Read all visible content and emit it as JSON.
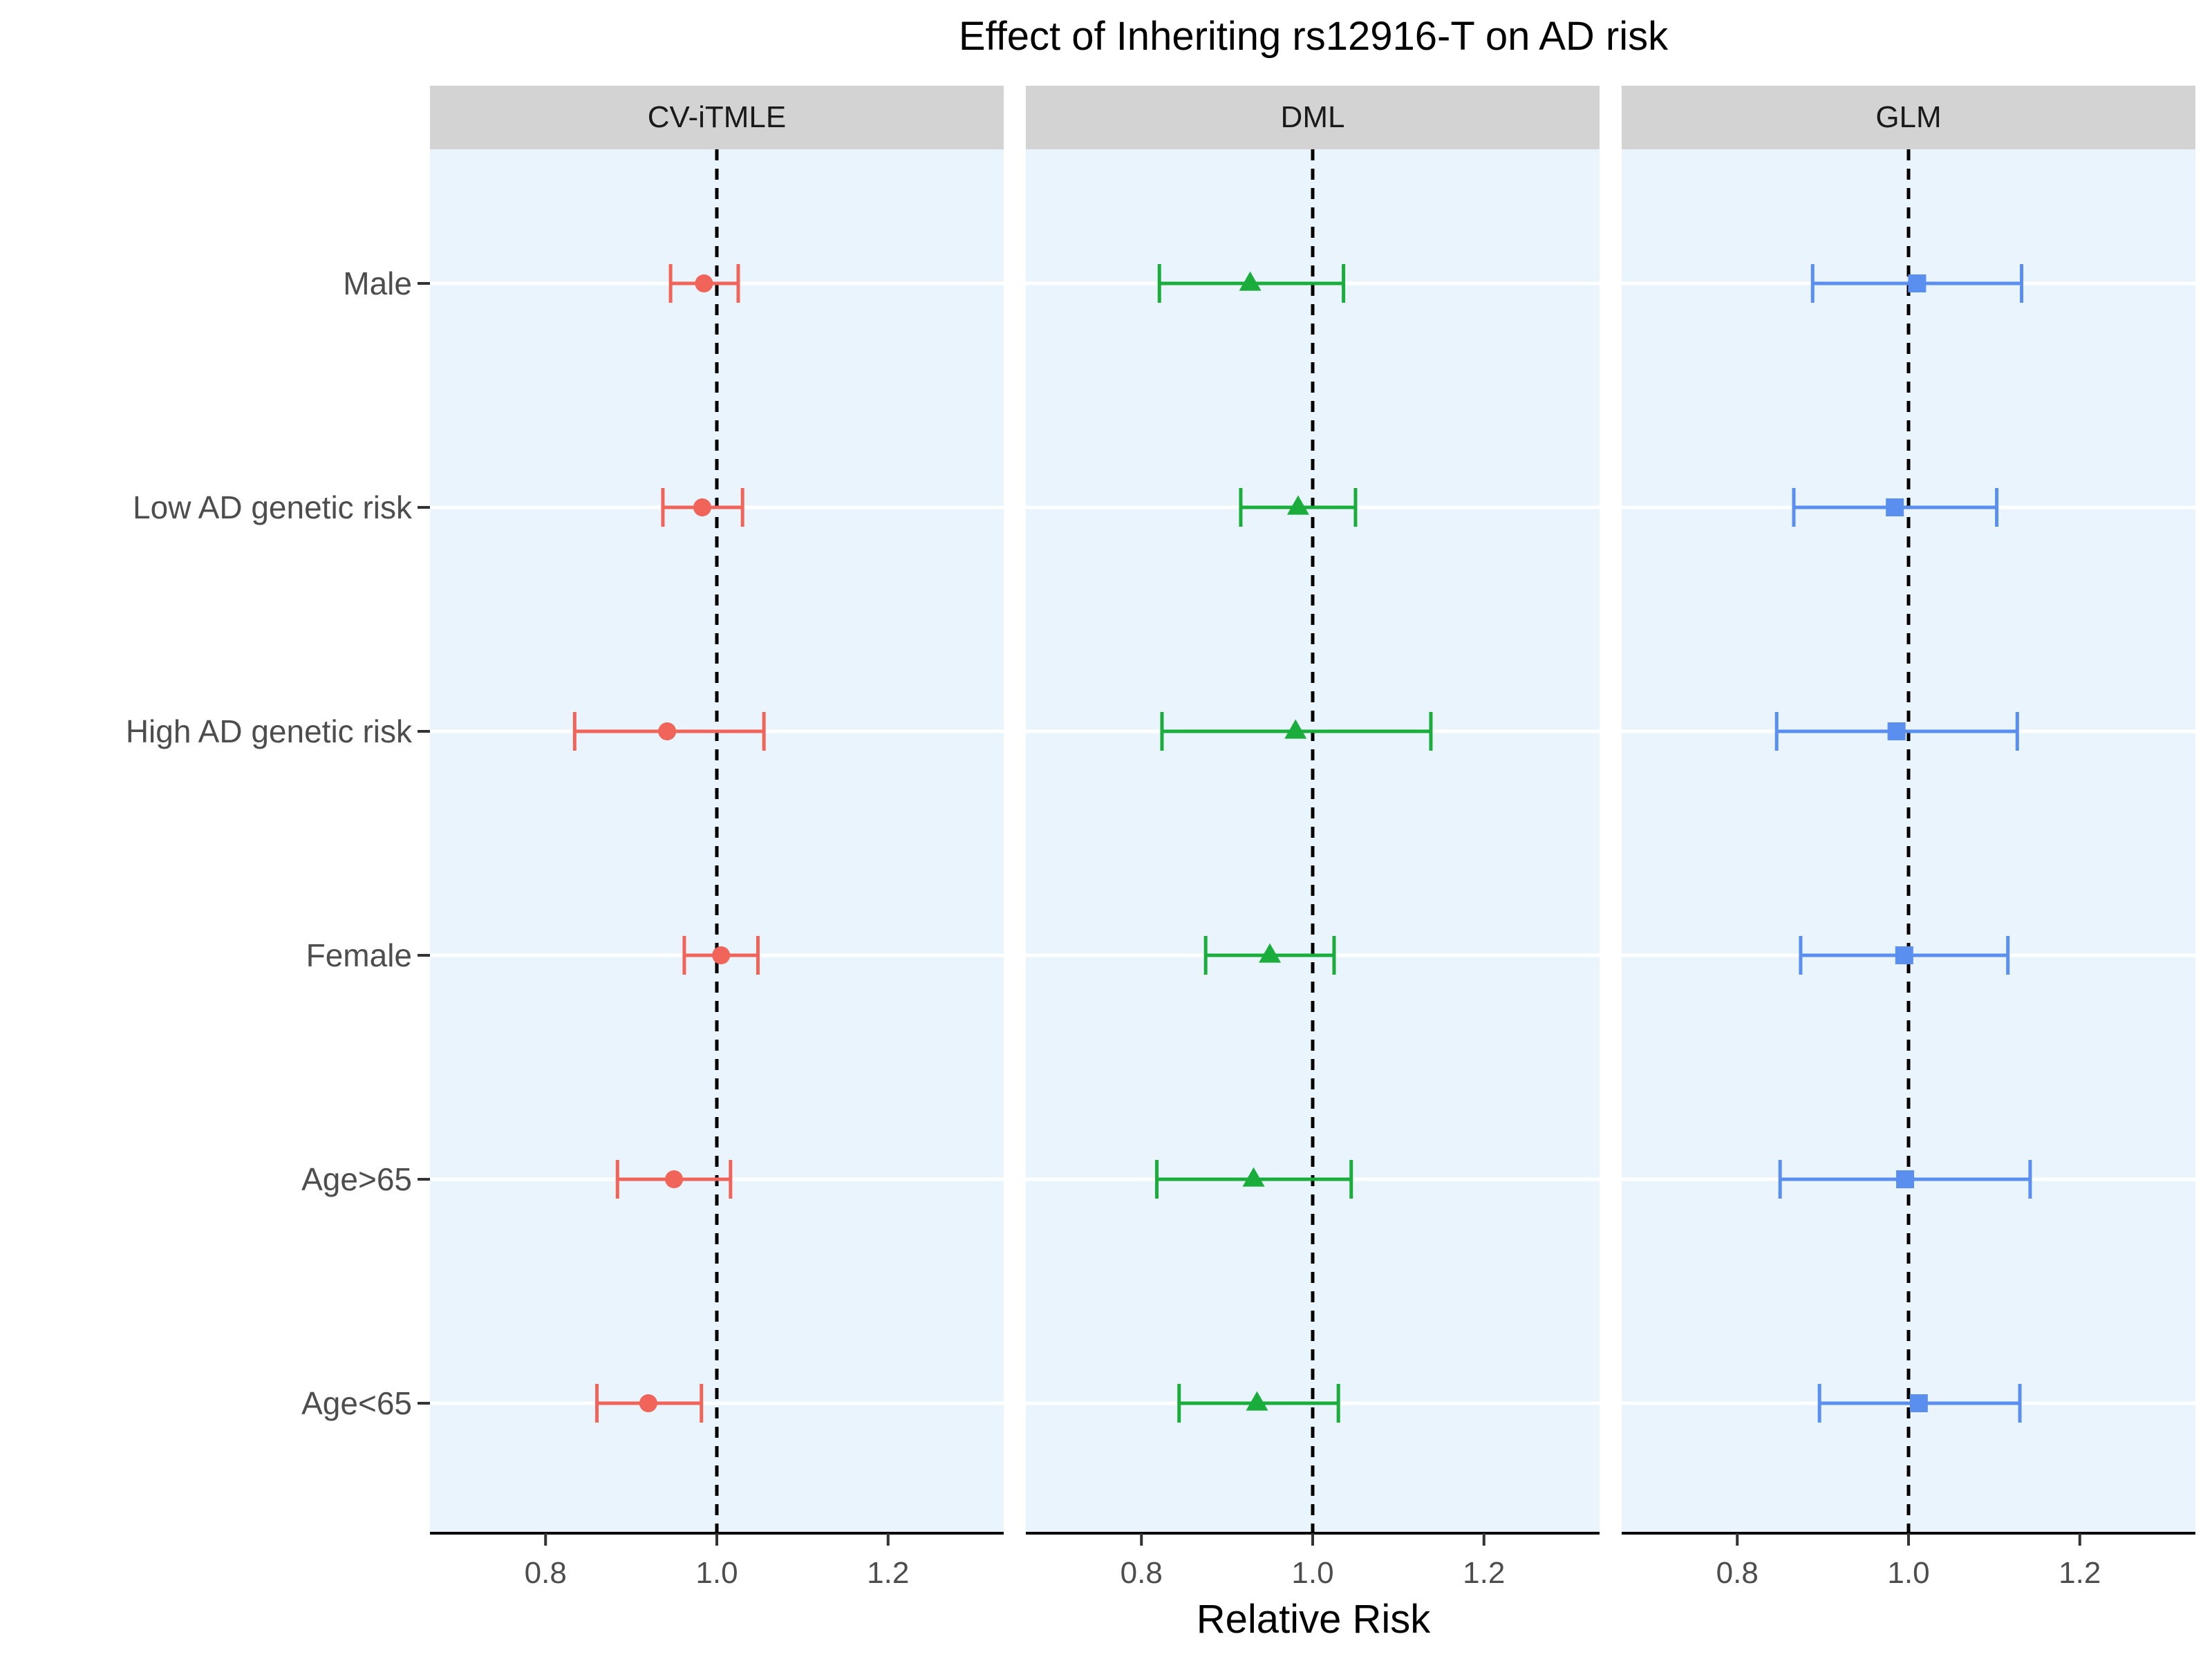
{
  "chart_data": {
    "type": "errorbar-forest-faceted",
    "title": "Effect of Inheriting rs12916-T on AD risk",
    "xlabel": "Relative Risk",
    "ylabel": "",
    "xlim": [
      0.665,
      1.335
    ],
    "xticks": [
      0.8,
      1.0,
      1.2
    ],
    "xtick_labels": [
      "0.8",
      "1.0",
      "1.2"
    ],
    "reference_line": 1.0,
    "categories": [
      "Male",
      "Low AD genetic risk",
      "High AD genetic risk",
      "Female",
      "Age>65",
      "Age<65"
    ],
    "panel_background": "#eaf4fc",
    "strip_background": "#d3d3d3",
    "grid": "horizontal major, white",
    "series": [
      {
        "name": "CV-iTMLE",
        "color": "#f0645a",
        "marker": "circle",
        "points": [
          {
            "category": "Male",
            "estimate": 0.985,
            "lower": 0.946,
            "upper": 1.025
          },
          {
            "category": "Low AD genetic risk",
            "estimate": 0.983,
            "lower": 0.937,
            "upper": 1.03
          },
          {
            "category": "High AD genetic risk",
            "estimate": 0.942,
            "lower": 0.834,
            "upper": 1.055
          },
          {
            "category": "Female",
            "estimate": 1.005,
            "lower": 0.962,
            "upper": 1.048
          },
          {
            "category": "Age>65",
            "estimate": 0.95,
            "lower": 0.884,
            "upper": 1.016
          },
          {
            "category": "Age<65",
            "estimate": 0.92,
            "lower": 0.86,
            "upper": 0.982
          }
        ]
      },
      {
        "name": "DML",
        "color": "#1aad3c",
        "marker": "triangle",
        "points": [
          {
            "category": "Male",
            "estimate": 0.927,
            "lower": 0.821,
            "upper": 1.036
          },
          {
            "category": "Low AD genetic risk",
            "estimate": 0.983,
            "lower": 0.916,
            "upper": 1.05
          },
          {
            "category": "High AD genetic risk",
            "estimate": 0.98,
            "lower": 0.824,
            "upper": 1.138
          },
          {
            "category": "Female",
            "estimate": 0.95,
            "lower": 0.875,
            "upper": 1.025
          },
          {
            "category": "Age>65",
            "estimate": 0.931,
            "lower": 0.818,
            "upper": 1.045
          },
          {
            "category": "Age<65",
            "estimate": 0.935,
            "lower": 0.844,
            "upper": 1.03
          }
        ]
      },
      {
        "name": "GLM",
        "color": "#5a8ff0",
        "marker": "square",
        "points": [
          {
            "category": "Male",
            "estimate": 1.01,
            "lower": 0.888,
            "upper": 1.132
          },
          {
            "category": "Low AD genetic risk",
            "estimate": 0.984,
            "lower": 0.866,
            "upper": 1.103
          },
          {
            "category": "High AD genetic risk",
            "estimate": 0.986,
            "lower": 0.846,
            "upper": 1.127
          },
          {
            "category": "Female",
            "estimate": 0.995,
            "lower": 0.874,
            "upper": 1.116
          },
          {
            "category": "Age>65",
            "estimate": 0.996,
            "lower": 0.85,
            "upper": 1.142
          },
          {
            "category": "Age<65",
            "estimate": 1.012,
            "lower": 0.896,
            "upper": 1.13
          }
        ]
      }
    ]
  }
}
